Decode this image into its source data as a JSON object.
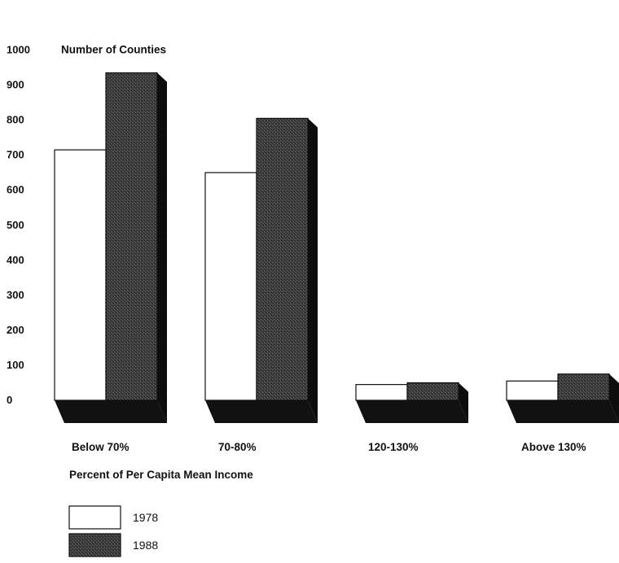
{
  "chart_data": {
    "type": "bar",
    "title": "",
    "ylabel": "Number of Counties",
    "xlabel": "Percent of Per Capita Mean Income",
    "categories": [
      "Below 70%",
      "70-80%",
      "120-130%",
      "Above 130%"
    ],
    "series": [
      {
        "name": "1978",
        "values": [
          715,
          650,
          45,
          55
        ],
        "color": "#ffffff"
      },
      {
        "name": "1988",
        "values": [
          935,
          805,
          50,
          75
        ],
        "color": "#3a3a3a"
      }
    ],
    "ylim": [
      0,
      1000
    ],
    "yticks": [
      "0",
      "100",
      "200",
      "300",
      "400",
      "500",
      "600",
      "700",
      "800",
      "900",
      "1000"
    ],
    "grid": false,
    "legend_position": "bottom-left",
    "style": "3d-bar"
  }
}
